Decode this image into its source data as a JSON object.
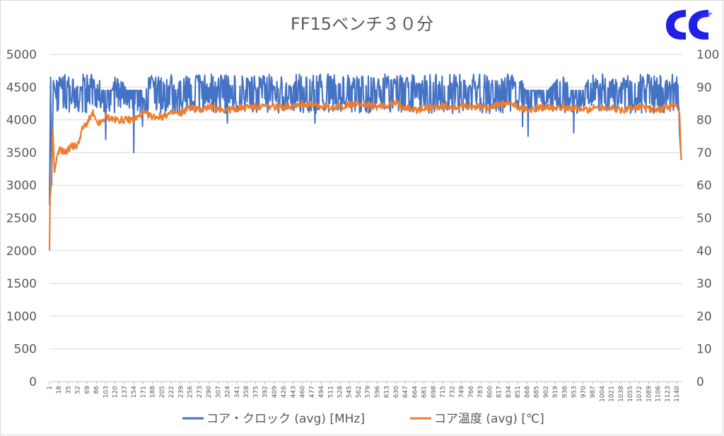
{
  "chart_data": {
    "type": "line",
    "title": "FF15ベンチ３０分",
    "logo_label": "CC",
    "x_tick_labels": [
      1,
      18,
      35,
      52,
      69,
      86,
      103,
      120,
      137,
      154,
      171,
      188,
      205,
      222,
      239,
      256,
      273,
      290,
      307,
      324,
      341,
      358,
      375,
      392,
      409,
      426,
      443,
      460,
      477,
      494,
      511,
      528,
      545,
      562,
      579,
      596,
      613,
      630,
      647,
      664,
      681,
      698,
      715,
      732,
      749,
      766,
      783,
      800,
      817,
      834,
      851,
      868,
      885,
      902,
      919,
      936,
      953,
      970,
      987,
      1004,
      1021,
      1038,
      1055,
      1072,
      1089,
      1106,
      1123,
      1140
    ],
    "x_range": [
      1,
      1150
    ],
    "y_left": {
      "range": [
        0,
        5000
      ],
      "ticks": [
        0,
        500,
        1000,
        1500,
        2000,
        2500,
        3000,
        3500,
        4000,
        4500,
        5000
      ]
    },
    "y_right": {
      "range": [
        0,
        100
      ],
      "ticks": [
        0,
        10,
        20,
        30,
        40,
        50,
        60,
        70,
        80,
        90,
        100
      ]
    },
    "grid": true,
    "legend_position": "bottom",
    "series": [
      {
        "name": "コア・クロック (avg) [MHz]",
        "axis": "left",
        "color": "#4472c4",
        "typical_min": 4100,
        "typical_max": 4700,
        "x": [
          1,
          3,
          5,
          8,
          12,
          18,
          35,
          52,
          69,
          86,
          103,
          120,
          137,
          154,
          171,
          188,
          205,
          239,
          273,
          324,
          375,
          409,
          443,
          494,
          545,
          596,
          647,
          698,
          749,
          800,
          851,
          877,
          936,
          953,
          987,
          1021,
          1055,
          1089,
          1123,
          1140,
          1148
        ],
        "values": [
          2700,
          4650,
          3000,
          4600,
          4400,
          4650,
          4500,
          4600,
          4500,
          4550,
          3700,
          4300,
          4200,
          3500,
          4200,
          4400,
          4300,
          4400,
          4350,
          4400,
          4350,
          4400,
          4450,
          4400,
          4400,
          4400,
          4450,
          4400,
          4400,
          4400,
          4450,
          3800,
          4400,
          3800,
          4400,
          4400,
          4350,
          4400,
          4400,
          4450,
          3400
        ],
        "dips": [
          [
            103,
            3700
          ],
          [
            154,
            3500
          ],
          [
            170,
            3900
          ],
          [
            324,
            3950
          ],
          [
            483,
            3950
          ],
          [
            860,
            3900
          ],
          [
            870,
            3750
          ],
          [
            953,
            3800
          ]
        ]
      },
      {
        "name": "コア温度 (avg) [℃]",
        "axis": "right",
        "color": "#ed7d31",
        "x": [
          1,
          2,
          4,
          7,
          10,
          14,
          20,
          30,
          40,
          52,
          60,
          69,
          80,
          86,
          95,
          103,
          120,
          137,
          154,
          171,
          188,
          205,
          222,
          239,
          256,
          273,
          290,
          324,
          358,
          392,
          426,
          460,
          494,
          528,
          562,
          596,
          630,
          664,
          698,
          732,
          766,
          800,
          834,
          868,
          902,
          936,
          970,
          1004,
          1038,
          1072,
          1106,
          1123,
          1140,
          1145,
          1148
        ],
        "values": [
          40,
          56,
          60,
          77,
          64,
          68,
          71,
          70,
          72,
          72,
          77,
          79,
          82,
          79,
          79,
          81,
          80,
          80,
          80,
          82,
          81,
          81,
          82,
          82,
          84,
          83,
          84,
          83,
          84,
          84,
          84,
          85,
          84,
          84,
          85,
          84,
          85,
          83,
          84,
          84,
          84,
          84,
          85,
          83,
          84,
          84,
          83,
          84,
          83,
          84,
          83,
          84,
          84,
          82,
          68
        ]
      }
    ]
  }
}
